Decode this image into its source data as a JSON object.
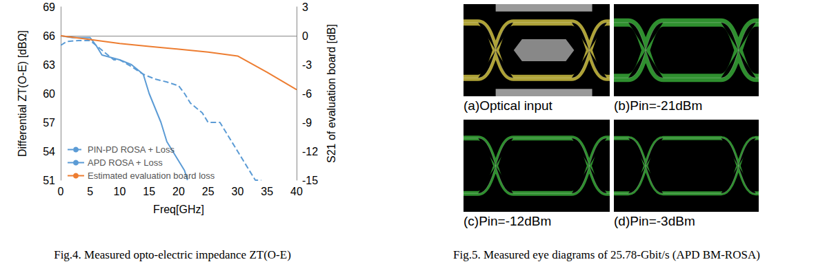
{
  "chart_data": {
    "type": "line",
    "x_label": "Freq[GHz]",
    "y_label": "Differential ZT(O-E) [dBΩ]",
    "y2_label": "S21 of evaluation board [dB]",
    "xlim": [
      0,
      40
    ],
    "xticks": [
      0,
      5,
      10,
      15,
      20,
      25,
      30,
      35,
      40
    ],
    "ylim": [
      51,
      69
    ],
    "yticks": [
      51,
      54,
      57,
      60,
      63,
      66,
      69
    ],
    "y2lim": [
      -15,
      3
    ],
    "y2ticks": [
      -15,
      -12,
      -9,
      -6,
      -3,
      0,
      3
    ],
    "grid": false,
    "legend": "lower left",
    "series": [
      {
        "name": "PIN-PD ROSA + Loss",
        "color": "#5b9bd5",
        "line_style": "dashed",
        "x": [
          0,
          1,
          3,
          5,
          7,
          9,
          10,
          12,
          14,
          16,
          18,
          20,
          21,
          22,
          24,
          25,
          27,
          28,
          29,
          30,
          31,
          32,
          33,
          34
        ],
        "values": [
          65,
          65.4,
          65.5,
          65.5,
          64.5,
          63.5,
          63.5,
          62.8,
          62,
          61.5,
          61.2,
          60.8,
          60,
          59,
          58,
          57,
          57,
          56,
          55,
          54,
          53,
          52,
          51,
          51
        ]
      },
      {
        "name": "APD ROSA + Loss",
        "color": "#5b9bd5",
        "line_style": "solid",
        "x": [
          0,
          2,
          5,
          6,
          7,
          10,
          12,
          14,
          15,
          16,
          17,
          18,
          19,
          20,
          21,
          21.5
        ],
        "values": [
          66,
          65.8,
          65.8,
          65,
          64,
          63.5,
          63,
          62,
          60,
          58.5,
          57,
          55,
          54,
          53,
          52,
          51
        ]
      },
      {
        "name": "Estimated evaluation board loss",
        "color": "#ed7d31",
        "line_style": "solid",
        "axis": "y2",
        "x": [
          0,
          5,
          10,
          15,
          20,
          25,
          30,
          35,
          40
        ],
        "values": [
          0,
          -0.4,
          -0.8,
          -1.1,
          -1.4,
          -1.7,
          -2.1,
          -3.8,
          -5.6
        ]
      }
    ]
  },
  "fig4": {
    "caption": "Fig.4. Measured opto-electric impedance ZT(O-E)"
  },
  "fig5": {
    "caption": "Fig.5. Measured eye diagrams of 25.78-Gbit/s (APD BM-ROSA)",
    "panels": [
      "(a)Optical input",
      "(b)Pin=-21dBm",
      "(c)Pin=-12dBm",
      "(d)Pin=-3dBm"
    ]
  }
}
